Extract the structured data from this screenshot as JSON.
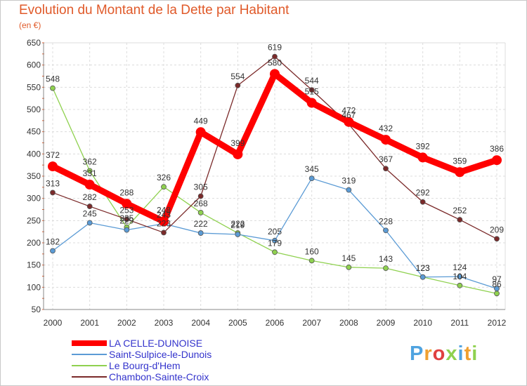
{
  "title": "Evolution du Montant de la Dette par Habitant",
  "unit": "(en €)",
  "logo": "Proxiti",
  "chart_data": {
    "type": "line",
    "x": [
      "2000",
      "2001",
      "2002",
      "2003",
      "2004",
      "2005",
      "2006",
      "2007",
      "2008",
      "2009",
      "2010",
      "2011",
      "2012"
    ],
    "ylim": [
      50,
      650
    ],
    "yticks": [
      50,
      100,
      150,
      200,
      250,
      300,
      350,
      400,
      450,
      500,
      550,
      600,
      650
    ],
    "grid": true,
    "legend_position": "bottom-left",
    "series": [
      {
        "name": "LA CELLE-DUNOISE",
        "color": "#ff0000",
        "values": [
          372,
          331,
          288,
          248,
          449,
          399,
          580,
          515,
          472,
          432,
          392,
          359,
          386
        ]
      },
      {
        "name": "Saint-Sulpice-le-Dunois",
        "color": "#5b9bd5",
        "values": [
          182,
          245,
          229,
          243,
          222,
          219,
          205,
          345,
          319,
          228,
          123,
          124,
          97
        ]
      },
      {
        "name": "Le Bourg-d'Hem",
        "color": "#8fd14f",
        "values": [
          548,
          362,
          235,
          326,
          268,
          222,
          179,
          160,
          145,
          143,
          123,
          104,
          86
        ]
      },
      {
        "name": "Chambon-Sainte-Croix",
        "color": "#7b2a2a",
        "values": [
          313,
          282,
          253,
          223,
          305,
          554,
          619,
          544,
          467,
          367,
          292,
          252,
          209
        ]
      }
    ]
  }
}
